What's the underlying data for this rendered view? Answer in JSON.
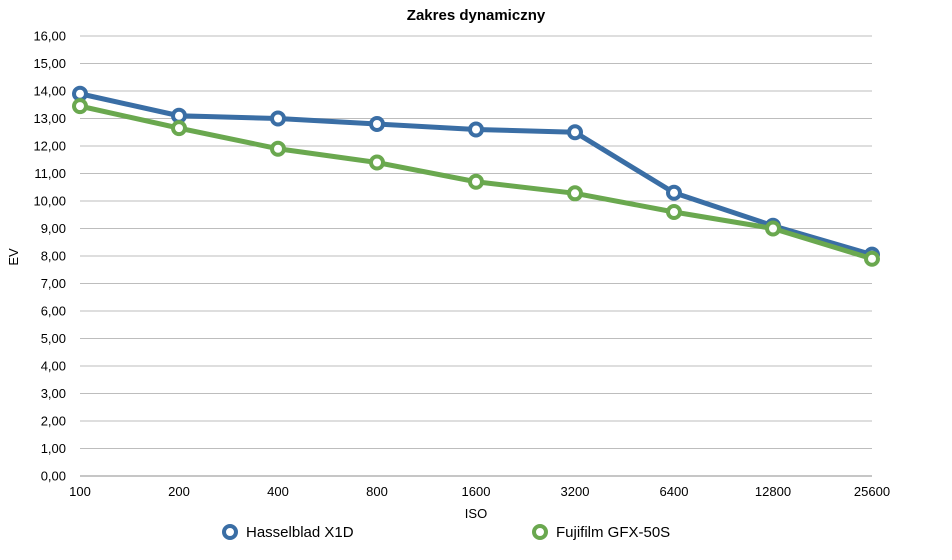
{
  "chart_data": {
    "type": "line",
    "title": "Zakres dynamiczny",
    "xlabel": "ISO",
    "ylabel": "EV",
    "categories": [
      "100",
      "200",
      "400",
      "800",
      "1600",
      "3200",
      "6400",
      "12800",
      "25600"
    ],
    "ylim": [
      0,
      16
    ],
    "yticks": [
      "0,00",
      "1,00",
      "2,00",
      "3,00",
      "4,00",
      "5,00",
      "6,00",
      "7,00",
      "8,00",
      "9,00",
      "10,00",
      "11,00",
      "12,00",
      "13,00",
      "14,00",
      "15,00",
      "16,00"
    ],
    "grid": true,
    "legend_position": "bottom",
    "series": [
      {
        "name": "Hasselblad X1D",
        "color": "#3a6ea5",
        "values": [
          13.9,
          13.1,
          13.0,
          12.8,
          12.6,
          12.5,
          10.3,
          9.1,
          8.05
        ]
      },
      {
        "name": "Fujifilm GFX-50S",
        "color": "#6aa84f",
        "values": [
          13.45,
          12.65,
          11.9,
          11.4,
          10.7,
          10.28,
          9.6,
          9.0,
          7.9
        ]
      }
    ]
  }
}
